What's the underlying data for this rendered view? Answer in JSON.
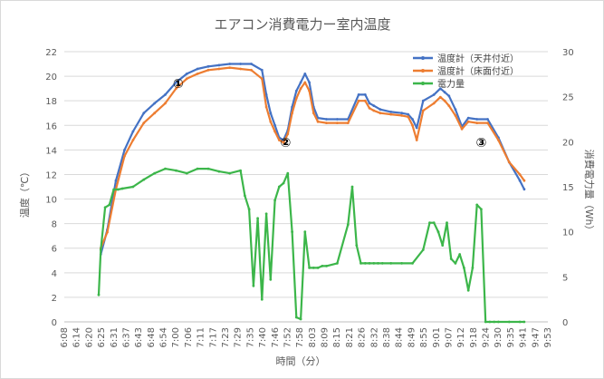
{
  "chart_data": {
    "type": "line",
    "title": "エアコン消費電力ー室内温度",
    "xlabel": "時間（分）",
    "ylabel_left": "温度（℃）",
    "ylabel_right": "消費電力量（Wh）",
    "ylim_left": [
      0,
      22
    ],
    "yticks_left": [
      "0",
      "2",
      "4",
      "6",
      "8",
      "10",
      "12",
      "14",
      "16",
      "18",
      "20",
      "22"
    ],
    "ylim_right": [
      0,
      30
    ],
    "yticks_right": [
      "0",
      "5",
      "10",
      "15",
      "20",
      "25",
      "30"
    ],
    "xlim": [
      368,
      593
    ],
    "xticks": [
      "6:08",
      "6:14",
      "6:20",
      "6:25",
      "6:31",
      "6:37",
      "6:43",
      "6:48",
      "6:54",
      "7:00",
      "7:06",
      "7:11",
      "7:17",
      "7:23",
      "7:29",
      "7:35",
      "7:40",
      "7:46",
      "7:52",
      "7:58",
      "8:03",
      "8:09",
      "8:15",
      "8:21",
      "8:26",
      "8:32",
      "8:38",
      "8:44",
      "8:49",
      "8:55",
      "9:01",
      "9:07",
      "9:12",
      "9:18",
      "9:24",
      "9:30",
      "9:35",
      "9:41",
      "9:47",
      "9:53"
    ],
    "grid": true,
    "legend_position": "top-right",
    "series": [
      {
        "name": "温度計（天井付近）",
        "axis": "left",
        "color": "#4472C4",
        "x": [
          385,
          388,
          392,
          396,
          400,
          405,
          410,
          415,
          420,
          425,
          430,
          435,
          440,
          445,
          450,
          455,
          460,
          462,
          464,
          466,
          468,
          470,
          472,
          474,
          476,
          478,
          480,
          482,
          484,
          486,
          490,
          495,
          500,
          505,
          508,
          510,
          512,
          515,
          520,
          525,
          528,
          530,
          532,
          535,
          540,
          543,
          545,
          547,
          550,
          553,
          556,
          560,
          565,
          570,
          575,
          580,
          582
        ],
        "y": [
          5.5,
          7.5,
          11.5,
          14,
          15.5,
          17,
          17.8,
          18.5,
          19.5,
          20.2,
          20.6,
          20.8,
          20.9,
          21,
          21,
          21,
          20.5,
          18.5,
          17,
          16,
          15,
          14.8,
          15.6,
          17.5,
          18.8,
          19.5,
          20.2,
          19.5,
          17.5,
          16.6,
          16.5,
          16.5,
          16.5,
          18.5,
          18.5,
          17.8,
          17.6,
          17.3,
          17.1,
          17,
          16.9,
          16.5,
          15.8,
          18,
          18.5,
          19,
          18.7,
          18.4,
          17.3,
          15.9,
          16.6,
          16.5,
          16.5,
          15,
          13,
          11.5,
          10.8
        ]
      },
      {
        "name": "温度計（床面付近）",
        "axis": "left",
        "color": "#ED7D31",
        "x": [
          385,
          388,
          392,
          396,
          400,
          405,
          410,
          415,
          420,
          425,
          430,
          435,
          440,
          445,
          450,
          455,
          460,
          462,
          464,
          466,
          468,
          470,
          472,
          474,
          476,
          478,
          480,
          482,
          484,
          486,
          490,
          495,
          500,
          505,
          508,
          510,
          512,
          515,
          520,
          525,
          528,
          530,
          532,
          535,
          540,
          543,
          545,
          547,
          550,
          553,
          556,
          560,
          565,
          570,
          575,
          580,
          582
        ],
        "y": [
          6,
          7.3,
          10.8,
          13.5,
          14.8,
          16.2,
          17,
          17.8,
          19,
          19.8,
          20.2,
          20.5,
          20.6,
          20.7,
          20.6,
          20.5,
          19.8,
          17.5,
          16.3,
          15.5,
          14.8,
          14.6,
          15.3,
          17,
          18.2,
          19,
          19.5,
          18.8,
          17,
          16.3,
          16.2,
          16.2,
          16.2,
          18,
          18,
          17.4,
          17.2,
          17,
          16.9,
          16.8,
          16.7,
          16,
          14.8,
          17.2,
          17.8,
          18.3,
          18,
          17.6,
          16.8,
          15.7,
          16.3,
          16.2,
          16.2,
          14.8,
          13,
          12,
          11.5
        ]
      },
      {
        "name": "電力量",
        "axis": "right",
        "color": "#3CB64A",
        "x": [
          384,
          385,
          387,
          389,
          391,
          393,
          395,
          400,
          405,
          410,
          415,
          420,
          425,
          430,
          435,
          440,
          445,
          450,
          452,
          454,
          456,
          458,
          460,
          462,
          464,
          466,
          468,
          470,
          472,
          474,
          476,
          478,
          480,
          482,
          484,
          486,
          488,
          490,
          495,
          500,
          502,
          504,
          506,
          508,
          510,
          512,
          514,
          516,
          520,
          525,
          530,
          535,
          538,
          540,
          542,
          544,
          546,
          548,
          550,
          552,
          554,
          556,
          558,
          560,
          562,
          564,
          566,
          568,
          570,
          575,
          580,
          582
        ],
        "y": [
          3,
          8,
          12.7,
          13,
          14.7,
          14.7,
          14.8,
          15,
          15.8,
          16.5,
          17,
          16.8,
          16.5,
          17,
          17,
          16.7,
          16.5,
          16.8,
          14,
          12.5,
          4,
          11.5,
          2.5,
          12,
          4.7,
          13.5,
          15,
          15.4,
          16.5,
          10,
          0.5,
          0.3,
          10,
          6,
          6,
          6,
          6.2,
          6.2,
          6.5,
          10.8,
          15,
          8.5,
          6.5,
          6.5,
          6.5,
          6.5,
          6.5,
          6.5,
          6.5,
          6.5,
          6.5,
          8,
          11,
          11,
          10,
          8.5,
          11,
          7,
          6.5,
          7.5,
          6,
          3.5,
          6,
          13,
          12.5,
          0,
          0,
          0,
          0,
          0,
          0,
          0
        ]
      }
    ],
    "annotations": [
      {
        "label": "①",
        "x": 421,
        "y": 19.4
      },
      {
        "label": "②",
        "x": 471,
        "y": 14.6
      },
      {
        "label": "③",
        "x": 562,
        "y": 14.6
      }
    ]
  }
}
